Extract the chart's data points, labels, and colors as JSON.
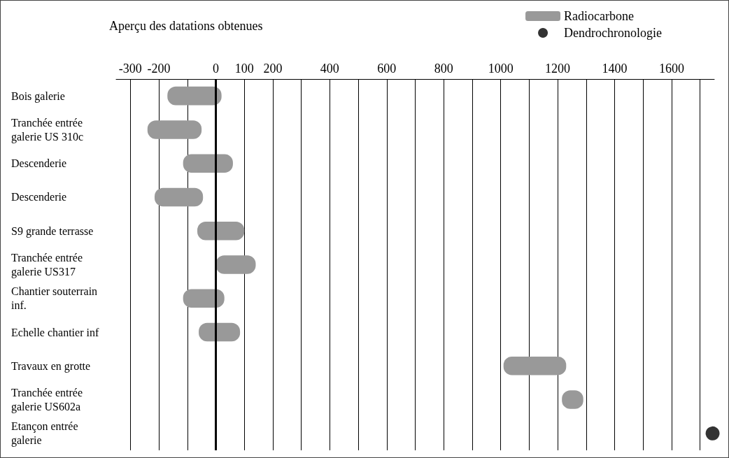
{
  "chart_data": {
    "type": "bar",
    "orientation": "horizontal",
    "title": "Aperçu des datations obtenues",
    "categories": [
      "Bois galerie",
      "Tranchée entrée galerie US 310c",
      "Descenderie",
      "Descenderie",
      "S9 grande terrasse",
      "Tranchée entrée galerie US317",
      "Chantier souterrain inf.",
      "Echelle chantier inf",
      "Travaux en grotte",
      "Tranchée entrée galerie US602a",
      "Etançon entrée galerie"
    ],
    "series": [
      {
        "name": "Radiocarbone",
        "color": "#999999",
        "base": [
          -170,
          -240,
          -115,
          -215,
          -65,
          0,
          -115,
          -60,
          1010,
          1215,
          null
        ],
        "values": [
          190,
          190,
          175,
          170,
          165,
          140,
          145,
          145,
          220,
          75,
          null
        ]
      },
      {
        "name": "Dendrochronologie",
        "type": "scatter",
        "color": "#000000",
        "marker": "circle",
        "values": [
          null,
          null,
          null,
          null,
          null,
          null,
          null,
          null,
          null,
          null,
          1744
        ]
      }
    ],
    "xlim": [
      -350,
      1750
    ],
    "xticks": [
      -300,
      -200,
      {
        "value": -100,
        "label": null
      },
      0,
      100,
      200,
      {
        "value": 300,
        "label": null
      },
      400,
      {
        "value": 500,
        "label": null
      },
      600,
      {
        "value": 700,
        "label": null
      },
      800,
      {
        "value": 900,
        "label": null
      },
      1000,
      {
        "value": 1100,
        "label": null
      },
      1200,
      {
        "value": 1300,
        "label": null
      },
      1400,
      {
        "value": 1500,
        "label": null
      },
      1600,
      {
        "value": 1700,
        "label": null
      }
    ],
    "ref_lines": [
      {
        "axis": "x",
        "value": 0,
        "color": "#000000"
      }
    ],
    "grid": "x",
    "legend": "top right"
  }
}
